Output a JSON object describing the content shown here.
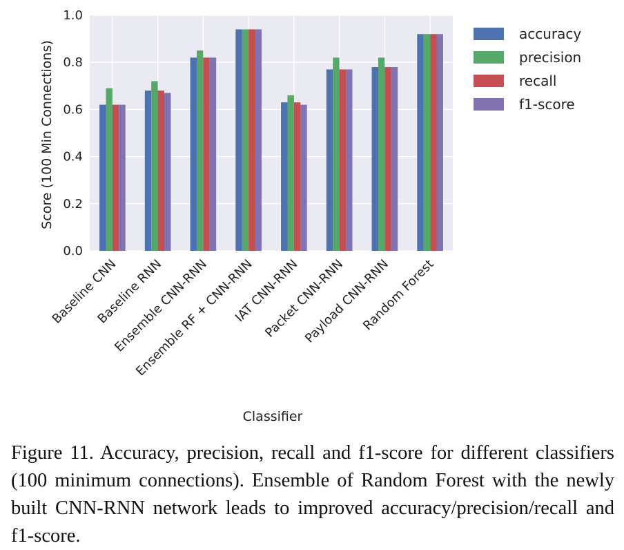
{
  "chart_data": {
    "type": "bar",
    "categories": [
      "Baseline CNN",
      "Baseline RNN",
      "Ensemble CNN-RNN",
      "Ensemble RF + CNN-RNN",
      "IAT CNN-RNN",
      "Packet CNN-RNN",
      "Payload CNN-RNN",
      "Random Forest"
    ],
    "series": [
      {
        "name": "accuracy",
        "color": "#4c72b0",
        "values": [
          0.62,
          0.68,
          0.82,
          0.94,
          0.63,
          0.77,
          0.78,
          0.92
        ]
      },
      {
        "name": "precision",
        "color": "#55a868",
        "values": [
          0.69,
          0.72,
          0.85,
          0.94,
          0.66,
          0.82,
          0.82,
          0.92
        ]
      },
      {
        "name": "recall",
        "color": "#c44e52",
        "values": [
          0.62,
          0.68,
          0.82,
          0.94,
          0.63,
          0.77,
          0.78,
          0.92
        ]
      },
      {
        "name": "f1-score",
        "color": "#8172b2",
        "values": [
          0.62,
          0.67,
          0.82,
          0.94,
          0.62,
          0.77,
          0.78,
          0.92
        ]
      }
    ],
    "xlabel": "Classifier",
    "ylabel": "Score (100 Min Connections)",
    "ylim": [
      0,
      1.0
    ],
    "yticks": [
      "0.0",
      "0.2",
      "0.4",
      "0.6",
      "0.8",
      "1.0"
    ],
    "grid": true,
    "legend": "outside-right"
  },
  "caption": "Figure 11.  Accuracy, precision, recall and f1-score for different classifiers (100 minimum connections).  Ensemble of Random Forest with the newly built CNN-RNN network leads to improved accuracy/precision/recall and f1-score."
}
